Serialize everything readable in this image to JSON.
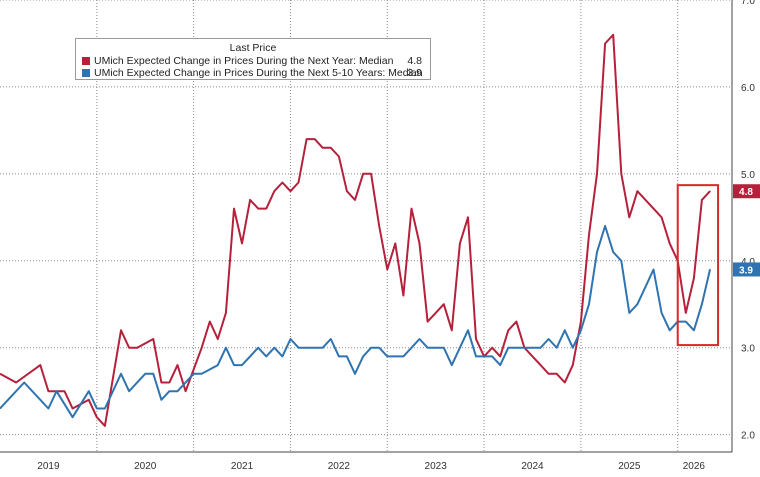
{
  "legend": {
    "header": "Last Price",
    "entries": [
      {
        "label": "UMich Expected Change in Prices During the Next Year: Median",
        "value": "4.8",
        "color": "#b5213b"
      },
      {
        "label": "UMich Expected Change in Prices During the Next 5-10 Years: Median",
        "value": "3.9",
        "color": "#2f74b0"
      }
    ]
  },
  "last_value_tags": [
    "4.8",
    "3.9"
  ],
  "chart_data": {
    "type": "line",
    "x_tick_labels": [
      "2019",
      "2020",
      "2021",
      "2022",
      "2023",
      "2024",
      "2025",
      "2026"
    ],
    "y_tick_labels": [
      "2.0",
      "3.0",
      "4.0",
      "5.0",
      "6.0",
      "7.0"
    ],
    "ylim": [
      1.8,
      7.0
    ],
    "xlim": [
      "2019-01",
      "2026-05"
    ],
    "grid": true,
    "legend_position": "top-left",
    "series": [
      {
        "name": "UMich Expected Change in Prices During the Next Year: Median",
        "color": "#b5213b",
        "points": [
          [
            "2019-01",
            2.7
          ],
          [
            "2019-03",
            2.6
          ],
          [
            "2019-06",
            2.8
          ],
          [
            "2019-07",
            2.5
          ],
          [
            "2019-09",
            2.5
          ],
          [
            "2019-10",
            2.3
          ],
          [
            "2019-12",
            2.4
          ],
          [
            "2020-01",
            2.2
          ],
          [
            "2020-02",
            2.1
          ],
          [
            "2020-04",
            3.2
          ],
          [
            "2020-05",
            3.0
          ],
          [
            "2020-06",
            3.0
          ],
          [
            "2020-08",
            3.1
          ],
          [
            "2020-09",
            2.6
          ],
          [
            "2020-10",
            2.6
          ],
          [
            "2020-11",
            2.8
          ],
          [
            "2020-12",
            2.5
          ],
          [
            "2021-02",
            3.0
          ],
          [
            "2021-03",
            3.3
          ],
          [
            "2021-04",
            3.1
          ],
          [
            "2021-05",
            3.4
          ],
          [
            "2021-06",
            4.6
          ],
          [
            "2021-07",
            4.2
          ],
          [
            "2021-08",
            4.7
          ],
          [
            "2021-09",
            4.6
          ],
          [
            "2021-10",
            4.6
          ],
          [
            "2021-11",
            4.8
          ],
          [
            "2021-12",
            4.9
          ],
          [
            "2022-01",
            4.8
          ],
          [
            "2022-02",
            4.9
          ],
          [
            "2022-03",
            5.4
          ],
          [
            "2022-04",
            5.4
          ],
          [
            "2022-05",
            5.3
          ],
          [
            "2022-06",
            5.3
          ],
          [
            "2022-07",
            5.2
          ],
          [
            "2022-08",
            4.8
          ],
          [
            "2022-09",
            4.7
          ],
          [
            "2022-10",
            5.0
          ],
          [
            "2022-11",
            5.0
          ],
          [
            "2022-12",
            4.4
          ],
          [
            "2023-01",
            3.9
          ],
          [
            "2023-02",
            4.2
          ],
          [
            "2023-03",
            3.6
          ],
          [
            "2023-04",
            4.6
          ],
          [
            "2023-05",
            4.2
          ],
          [
            "2023-06",
            3.3
          ],
          [
            "2023-07",
            3.4
          ],
          [
            "2023-08",
            3.5
          ],
          [
            "2023-09",
            3.2
          ],
          [
            "2023-10",
            4.2
          ],
          [
            "2023-11",
            4.5
          ],
          [
            "2023-12",
            3.1
          ],
          [
            "2024-01",
            2.9
          ],
          [
            "2024-02",
            3.0
          ],
          [
            "2024-03",
            2.9
          ],
          [
            "2024-04",
            3.2
          ],
          [
            "2024-05",
            3.3
          ],
          [
            "2024-06",
            3.0
          ],
          [
            "2024-07",
            2.9
          ],
          [
            "2024-08",
            2.8
          ],
          [
            "2024-09",
            2.7
          ],
          [
            "2024-10",
            2.7
          ],
          [
            "2024-11",
            2.6
          ],
          [
            "2024-12",
            2.8
          ],
          [
            "2025-01",
            3.3
          ],
          [
            "2025-02",
            4.3
          ],
          [
            "2025-03",
            5.0
          ],
          [
            "2025-04",
            6.5
          ],
          [
            "2025-05",
            6.6
          ],
          [
            "2025-06",
            5.0
          ],
          [
            "2025-07",
            4.5
          ],
          [
            "2025-08",
            4.8
          ],
          [
            "2025-09",
            4.7
          ],
          [
            "2025-10",
            4.6
          ],
          [
            "2025-11",
            4.5
          ],
          [
            "2025-12",
            4.2
          ],
          [
            "2026-01",
            4.0
          ],
          [
            "2026-02",
            3.4
          ],
          [
            "2026-03",
            3.8
          ],
          [
            "2026-04",
            4.7
          ],
          [
            "2026-05",
            4.8
          ]
        ]
      },
      {
        "name": "UMich Expected Change in Prices During the Next 5-10 Years: Median",
        "color": "#2f74b0",
        "points": [
          [
            "2019-01",
            2.3
          ],
          [
            "2019-03",
            2.5
          ],
          [
            "2019-04",
            2.6
          ],
          [
            "2019-06",
            2.4
          ],
          [
            "2019-07",
            2.3
          ],
          [
            "2019-08",
            2.5
          ],
          [
            "2019-10",
            2.2
          ],
          [
            "2019-12",
            2.5
          ],
          [
            "2020-01",
            2.3
          ],
          [
            "2020-02",
            2.3
          ],
          [
            "2020-04",
            2.7
          ],
          [
            "2020-05",
            2.5
          ],
          [
            "2020-07",
            2.7
          ],
          [
            "2020-08",
            2.7
          ],
          [
            "2020-09",
            2.4
          ],
          [
            "2020-10",
            2.5
          ],
          [
            "2020-11",
            2.5
          ],
          [
            "2021-01",
            2.7
          ],
          [
            "2021-02",
            2.7
          ],
          [
            "2021-04",
            2.8
          ],
          [
            "2021-05",
            3.0
          ],
          [
            "2021-06",
            2.8
          ],
          [
            "2021-07",
            2.8
          ],
          [
            "2021-09",
            3.0
          ],
          [
            "2021-10",
            2.9
          ],
          [
            "2021-11",
            3.0
          ],
          [
            "2021-12",
            2.9
          ],
          [
            "2022-01",
            3.1
          ],
          [
            "2022-02",
            3.0
          ],
          [
            "2022-04",
            3.0
          ],
          [
            "2022-05",
            3.0
          ],
          [
            "2022-06",
            3.1
          ],
          [
            "2022-07",
            2.9
          ],
          [
            "2022-08",
            2.9
          ],
          [
            "2022-09",
            2.7
          ],
          [
            "2022-10",
            2.9
          ],
          [
            "2022-11",
            3.0
          ],
          [
            "2022-12",
            3.0
          ],
          [
            "2023-01",
            2.9
          ],
          [
            "2023-03",
            2.9
          ],
          [
            "2023-04",
            3.0
          ],
          [
            "2023-05",
            3.1
          ],
          [
            "2023-06",
            3.0
          ],
          [
            "2023-08",
            3.0
          ],
          [
            "2023-09",
            2.8
          ],
          [
            "2023-10",
            3.0
          ],
          [
            "2023-11",
            3.2
          ],
          [
            "2023-12",
            2.9
          ],
          [
            "2024-01",
            2.9
          ],
          [
            "2024-02",
            2.9
          ],
          [
            "2024-03",
            2.8
          ],
          [
            "2024-04",
            3.0
          ],
          [
            "2024-06",
            3.0
          ],
          [
            "2024-07",
            3.0
          ],
          [
            "2024-08",
            3.0
          ],
          [
            "2024-09",
            3.1
          ],
          [
            "2024-10",
            3.0
          ],
          [
            "2024-11",
            3.2
          ],
          [
            "2024-12",
            3.0
          ],
          [
            "2025-01",
            3.2
          ],
          [
            "2025-02",
            3.5
          ],
          [
            "2025-03",
            4.1
          ],
          [
            "2025-04",
            4.4
          ],
          [
            "2025-05",
            4.1
          ],
          [
            "2025-06",
            4.0
          ],
          [
            "2025-07",
            3.4
          ],
          [
            "2025-08",
            3.5
          ],
          [
            "2025-09",
            3.7
          ],
          [
            "2025-10",
            3.9
          ],
          [
            "2025-11",
            3.4
          ],
          [
            "2025-12",
            3.2
          ],
          [
            "2026-01",
            3.3
          ],
          [
            "2026-02",
            3.3
          ],
          [
            "2026-03",
            3.2
          ],
          [
            "2026-04",
            3.5
          ],
          [
            "2026-05",
            3.9
          ]
        ]
      }
    ],
    "annotation_box": {
      "x": [
        "2026-01",
        "2026-06"
      ],
      "y": [
        3.03,
        4.87
      ],
      "color": "#d42b2b"
    }
  },
  "colors": {
    "series_1": "#b5213b",
    "series_2": "#2f74b0",
    "annotation": "#d42b2b",
    "grid": "#8a8a8a"
  }
}
